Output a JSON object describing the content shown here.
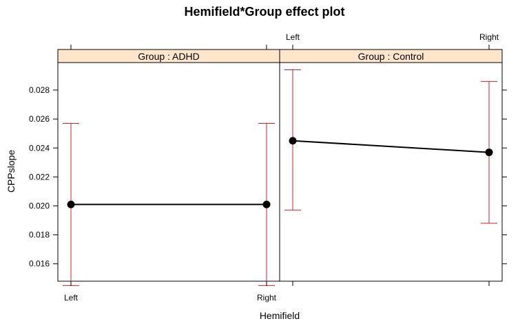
{
  "chart_data": {
    "type": "line",
    "title": "Hemifield*Group effect plot",
    "xlabel": "Hemifield",
    "ylabel": "CPPslope",
    "categories": [
      "Left",
      "Right"
    ],
    "yticks": [
      "0.016",
      "0.018",
      "0.020",
      "0.022",
      "0.024",
      "0.026",
      "0.028"
    ],
    "ylim": [
      0.0148,
      0.0299
    ],
    "grid": false,
    "panels": [
      {
        "label": "Group : ADHD",
        "values": [
          0.0201,
          0.0201
        ],
        "upper": [
          0.0257,
          0.0257
        ],
        "lower": [
          0.0145,
          0.0145
        ]
      },
      {
        "label": "Group : Control",
        "values": [
          0.0245,
          0.0237
        ],
        "upper": [
          0.0294,
          0.0286
        ],
        "lower": [
          0.0197,
          0.0188
        ]
      }
    ],
    "colors": {
      "line": "#000000",
      "error_bar": "#cc2020",
      "strip_background": "#ffe5cc"
    }
  }
}
